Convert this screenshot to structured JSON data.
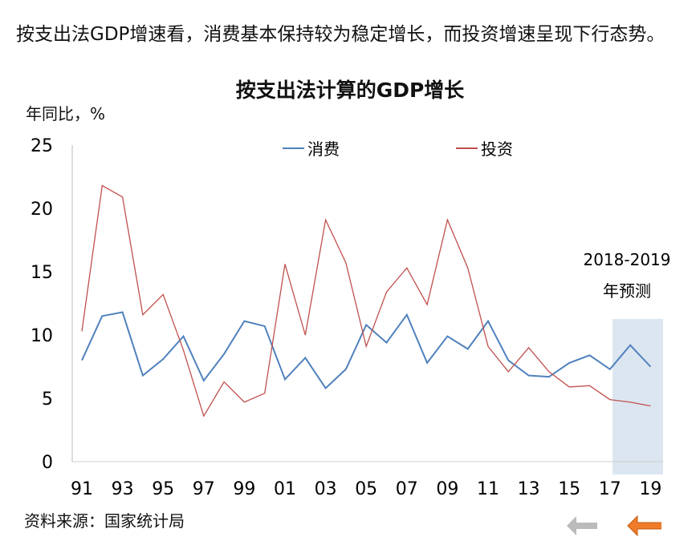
{
  "intro": "按支出法GDP增速看，消费基本保持较为稳定增长，而投资增速呈现下行态势。",
  "source": "资料来源：国家统计局",
  "colors": {
    "consumption": "#4f81bd",
    "investment": "#c0504d",
    "forecast": "#dce6f1"
  },
  "chart_data": {
    "type": "line",
    "title": "按支出法计算的GDP增长",
    "ylabel": "年同比，%",
    "xlabel": "",
    "ylim": [
      0,
      25
    ],
    "yticks": [
      0,
      5,
      10,
      15,
      20,
      25
    ],
    "x": [
      91,
      92,
      93,
      94,
      95,
      96,
      97,
      98,
      99,
      0,
      1,
      2,
      3,
      4,
      5,
      6,
      7,
      8,
      9,
      10,
      11,
      12,
      13,
      14,
      15,
      16,
      17,
      18,
      19
    ],
    "xtick_labels": [
      "91",
      "93",
      "95",
      "97",
      "99",
      "01",
      "03",
      "05",
      "07",
      "09",
      "11",
      "13",
      "15",
      "17",
      "19"
    ],
    "legend_position": "top",
    "annotation": [
      "2018-2019",
      "年预测"
    ],
    "series": [
      {
        "name": "消费",
        "values": [
          8.0,
          11.5,
          11.8,
          6.8,
          8.1,
          9.9,
          6.4,
          8.5,
          11.1,
          10.7,
          6.5,
          8.2,
          5.8,
          7.3,
          10.8,
          9.4,
          11.6,
          7.8,
          9.9,
          8.9,
          11.1,
          8.0,
          6.8,
          6.7,
          7.8,
          8.4,
          7.3,
          9.2,
          7.5
        ]
      },
      {
        "name": "投资",
        "values": [
          10.3,
          21.8,
          20.9,
          11.6,
          13.2,
          8.8,
          3.6,
          6.3,
          4.7,
          5.4,
          15.6,
          10.0,
          19.1,
          15.7,
          9.1,
          13.4,
          15.3,
          12.4,
          19.1,
          15.3,
          9.1,
          7.1,
          9.0,
          7.1,
          5.9,
          6.0,
          4.9,
          4.7,
          4.4
        ]
      }
    ]
  }
}
